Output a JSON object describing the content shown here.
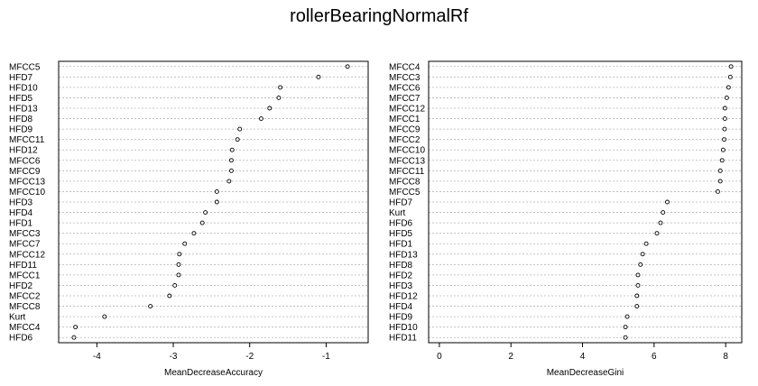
{
  "title": "rollerBearingNormalRf",
  "chart_data": [
    {
      "type": "scatter",
      "xlabel": "MeanDecreaseAccuracy",
      "xlim": [
        -4.5,
        -0.45
      ],
      "xticks": [
        "-4",
        "-3",
        "-2",
        "-1"
      ],
      "xtick_values": [
        -4,
        -3,
        -2,
        -1
      ],
      "grid": true,
      "categories": [
        "MFCC5",
        "HFD7",
        "HFD10",
        "HFD5",
        "HFD13",
        "HFD8",
        "HFD9",
        "MFCC11",
        "HFD12",
        "MFCC6",
        "MFCC9",
        "MFCC13",
        "MFCC10",
        "HFD3",
        "HFD4",
        "HFD1",
        "MFCC3",
        "MFCC7",
        "MFCC12",
        "HFD11",
        "MFCC1",
        "HFD2",
        "MFCC2",
        "MFCC8",
        "Kurt",
        "MFCC4",
        "HFD6"
      ],
      "values": [
        -0.72,
        -1.1,
        -1.6,
        -1.62,
        -1.74,
        -1.85,
        -2.13,
        -2.16,
        -2.23,
        -2.24,
        -2.24,
        -2.27,
        -2.43,
        -2.43,
        -2.58,
        -2.62,
        -2.73,
        -2.85,
        -2.92,
        -2.93,
        -2.93,
        -2.98,
        -3.05,
        -3.3,
        -3.9,
        -4.28,
        -4.3
      ]
    },
    {
      "type": "scatter",
      "xlabel": "MeanDecreaseGini",
      "xlim": [
        -0.3,
        8.45
      ],
      "xticks": [
        "0",
        "2",
        "4",
        "6",
        "8"
      ],
      "xtick_values": [
        0,
        2,
        4,
        6,
        8
      ],
      "grid": true,
      "categories": [
        "MFCC4",
        "MFCC3",
        "MFCC6",
        "MFCC7",
        "MFCC12",
        "MFCC1",
        "MFCC9",
        "MFCC2",
        "MFCC10",
        "MFCC13",
        "MFCC11",
        "MFCC8",
        "MFCC5",
        "HFD7",
        "Kurt",
        "HFD6",
        "HFD5",
        "HFD1",
        "HFD13",
        "HFD8",
        "HFD2",
        "HFD3",
        "HFD12",
        "HFD4",
        "HFD9",
        "HFD10",
        "HFD11"
      ],
      "values": [
        8.15,
        8.13,
        8.08,
        8.03,
        7.98,
        7.98,
        7.97,
        7.96,
        7.93,
        7.9,
        7.85,
        7.85,
        7.78,
        6.37,
        6.25,
        6.18,
        6.08,
        5.78,
        5.68,
        5.62,
        5.55,
        5.55,
        5.52,
        5.52,
        5.25,
        5.2,
        5.2
      ]
    }
  ]
}
